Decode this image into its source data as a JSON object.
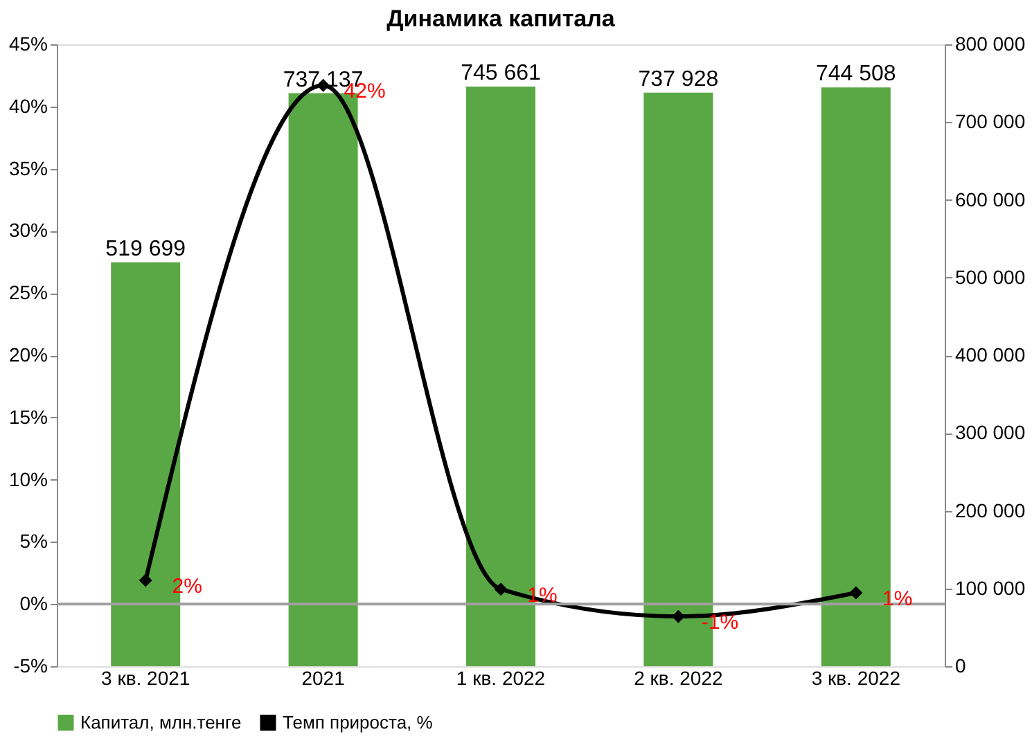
{
  "chart_data": {
    "type": "bar",
    "title": "Динамика капитала",
    "categories": [
      "3 кв. 2021",
      "2021",
      "1 кв. 2022",
      "2 кв. 2022",
      "3 кв. 2022"
    ],
    "series": [
      {
        "name": "Капитал, млн.тенге",
        "axis": "y2",
        "color": "#5aa845",
        "values": [
          519699,
          737137,
          745661,
          737928,
          744508
        ],
        "value_labels": [
          "519 699",
          "737 137",
          "745 661",
          "737 928",
          "744 508"
        ]
      },
      {
        "name": "Темп прироста, %",
        "type": "line",
        "color": "#000000",
        "values": [
          1.9,
          41.7,
          1.2,
          -1.0,
          0.9
        ],
        "value_labels": [
          "2%",
          "42%",
          "1%",
          "-1%",
          "1%"
        ]
      }
    ],
    "ylim": [
      -5,
      45
    ],
    "yticks": [
      {
        "value": -5,
        "label": "-5%"
      },
      {
        "value": 0,
        "label": "0%"
      },
      {
        "value": 5,
        "label": "5%"
      },
      {
        "value": 10,
        "label": "10%"
      },
      {
        "value": 15,
        "label": "15%"
      },
      {
        "value": 20,
        "label": "20%"
      },
      {
        "value": 25,
        "label": "25%"
      },
      {
        "value": 30,
        "label": "30%"
      },
      {
        "value": 35,
        "label": "35%"
      },
      {
        "value": 40,
        "label": "40%"
      },
      {
        "value": 45,
        "label": "45%"
      }
    ],
    "y2lim": [
      0,
      800000
    ],
    "y2ticks": [
      0,
      {
        "value": 100000,
        "label": "100 000"
      },
      {
        "value": 200000,
        "label": "200 000"
      },
      {
        "value": 300000,
        "label": "300 000"
      },
      {
        "value": 400000,
        "label": "400 000"
      },
      {
        "value": 500000,
        "label": "500 000"
      },
      {
        "value": 600000,
        "label": "600 000"
      },
      {
        "value": 700000,
        "label": "700 000"
      },
      {
        "value": 800000,
        "label": "800 000"
      }
    ],
    "ref_lines": [
      {
        "axis": "y",
        "value": 0,
        "color": "#a0a0a0"
      }
    ],
    "marker": "diamond",
    "line_style": "solid",
    "grid": false,
    "legend": "bottom"
  }
}
